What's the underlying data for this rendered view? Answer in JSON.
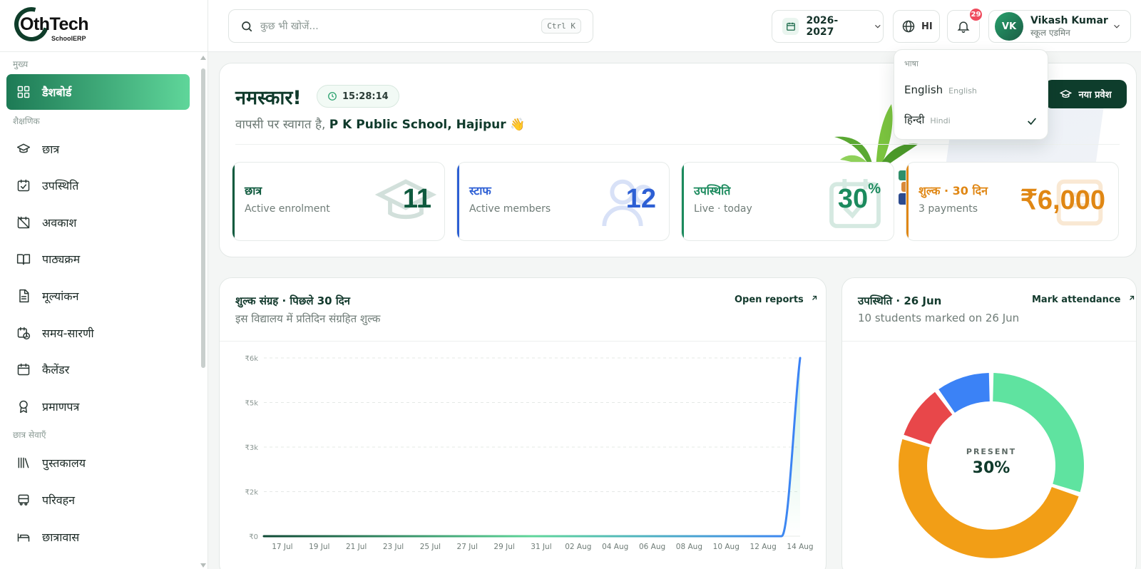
{
  "app": {
    "logo_text": "OthTech",
    "logo_sub": "SchoolERP"
  },
  "sidebar": {
    "sections": [
      {
        "label": "मुख्य",
        "items": [
          {
            "label": "डैशबोर्ड",
            "icon": "dashboard-icon",
            "active": true
          }
        ]
      },
      {
        "label": "शैक्षणिक",
        "items": [
          {
            "label": "छात्र",
            "icon": "graduation-cap-icon"
          },
          {
            "label": "उपस्थिति",
            "icon": "calendar-check-icon"
          },
          {
            "label": "अवकाश",
            "icon": "calendar-off-icon"
          },
          {
            "label": "पाठ्यक्रम",
            "icon": "book-open-icon"
          },
          {
            "label": "मूल्यांकन",
            "icon": "document-icon"
          },
          {
            "label": "समय-सारणी",
            "icon": "calendar-clock-icon"
          },
          {
            "label": "कैलेंडर",
            "icon": "calendar-icon"
          },
          {
            "label": "प्रमाणपत्र",
            "icon": "award-icon"
          }
        ]
      },
      {
        "label": "छात्र सेवाएँ",
        "items": [
          {
            "label": "पुस्तकालय",
            "icon": "library-icon"
          },
          {
            "label": "परिवहन",
            "icon": "bus-icon"
          },
          {
            "label": "छात्रावास",
            "icon": "bed-icon"
          }
        ]
      }
    ]
  },
  "topbar": {
    "search_placeholder": "कुछ भी खोजें...",
    "search_shortcut": "Ctrl K",
    "academic_year": "2026-2027",
    "language_code": "HI",
    "notification_count": "29",
    "user": {
      "initials": "VK",
      "name": "Vikash Kumar",
      "role": "स्कूल एडमिन"
    }
  },
  "language_menu": {
    "header": "भाषा",
    "options": [
      {
        "label": "English",
        "native": "English",
        "selected": false
      },
      {
        "label": "हिन्दी",
        "native": "Hindi",
        "selected": true
      }
    ]
  },
  "hero": {
    "greeting": "नमस्कार!",
    "time": "15:28:14",
    "welcome_prefix": "वापसी पर स्वागत है,",
    "school_name": "P K Public School, Hajipur",
    "wave": "👋",
    "new_admission_label": "नया प्रवेश"
  },
  "stats": [
    {
      "title": "छात्र",
      "subtitle": "Active enrolment",
      "value": "11",
      "color": "#0f5a3e",
      "icon": "graduation-cap-icon"
    },
    {
      "title": "स्टाफ",
      "subtitle": "Active members",
      "value": "12",
      "color": "#2d5fd4",
      "icon": "users-icon"
    },
    {
      "title": "उपस्थिति",
      "subtitle": "Live · today",
      "value": "30",
      "value_suffix": "%",
      "color": "#1b8a5d",
      "icon": "calendar-check-icon"
    },
    {
      "title": "शुल्क · 30 दिन",
      "subtitle": "3 payments",
      "value": "₹6,000",
      "color": "#e08714",
      "icon": "receipt-icon"
    }
  ],
  "fee_card": {
    "title": "शुल्क संग्रह · पिछले 30 दिन",
    "subtitle": "इस विद्यालय में प्रतिदिन संग्रहित शुल्क",
    "link_label": "Open reports"
  },
  "attendance_card": {
    "title": "उपस्थिति · 26 Jun",
    "subtitle": "10 students marked on 26 Jun",
    "link_label": "Mark attendance",
    "center_label": "PRESENT",
    "center_value": "30%"
  },
  "chart_data": [
    {
      "type": "area",
      "title": "शुल्क संग्रह · पिछले 30 दिन",
      "subtitle": "इस विद्यालय में प्रतिदिन संग्रहित शुल्क",
      "x_tick_labels": [
        "17 Jul",
        "19 Jul",
        "21 Jul",
        "23 Jul",
        "25 Jul",
        "27 Jul",
        "29 Jul",
        "31 Jul",
        "02 Aug",
        "04 Aug",
        "06 Aug",
        "08 Aug",
        "10 Aug",
        "12 Aug",
        "14 Aug"
      ],
      "y_tick_labels": [
        "₹0",
        "₹2k",
        "₹3k",
        "₹5k",
        "₹6k"
      ],
      "y_ticks": [
        0,
        1500,
        3000,
        4500,
        6000
      ],
      "ylim": [
        0,
        6000
      ],
      "x": [
        "16 Jul",
        "17 Jul",
        "18 Jul",
        "19 Jul",
        "20 Jul",
        "21 Jul",
        "22 Jul",
        "23 Jul",
        "24 Jul",
        "25 Jul",
        "26 Jul",
        "27 Jul",
        "28 Jul",
        "29 Jul",
        "30 Jul",
        "31 Jul",
        "01 Aug",
        "02 Aug",
        "03 Aug",
        "04 Aug",
        "05 Aug",
        "06 Aug",
        "07 Aug",
        "08 Aug",
        "09 Aug",
        "10 Aug",
        "11 Aug",
        "12 Aug",
        "13 Aug",
        "14 Aug"
      ],
      "values": [
        0,
        0,
        0,
        0,
        0,
        0,
        0,
        0,
        0,
        0,
        0,
        0,
        0,
        0,
        0,
        0,
        0,
        0,
        0,
        0,
        0,
        0,
        0,
        0,
        0,
        0,
        0,
        0,
        0,
        6000
      ],
      "grid": true
    },
    {
      "type": "pie",
      "title": "उपस्थिति · 26 Jun",
      "center_label": "PRESENT",
      "center_value": "30%",
      "slices": [
        {
          "value": 3,
          "color": "#5fe3a0"
        },
        {
          "value": 5,
          "color": "#f29e16"
        },
        {
          "value": 1,
          "color": "#e8474a"
        },
        {
          "value": 1,
          "color": "#3b82f6"
        }
      ]
    }
  ]
}
